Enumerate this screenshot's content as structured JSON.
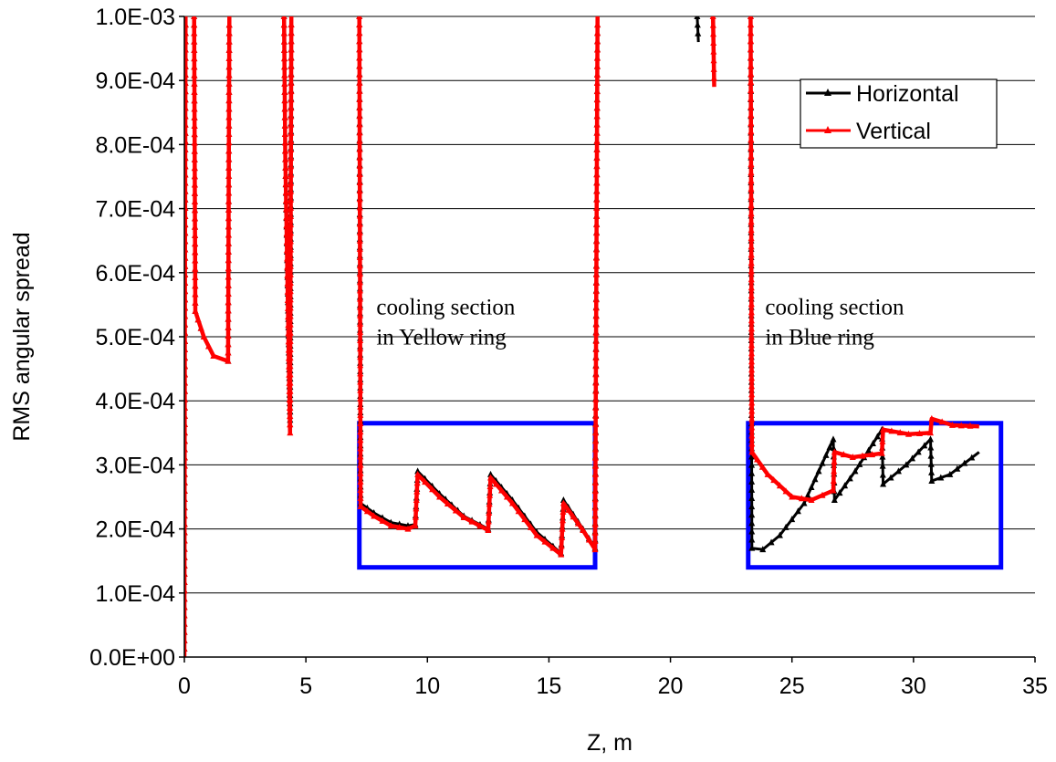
{
  "chart_data": {
    "type": "line",
    "xlabel": "Z, m",
    "ylabel": "RMS angular spread",
    "xlim": [
      0,
      35
    ],
    "ylim": [
      0,
      0.001
    ],
    "x_ticks": [
      "0",
      "5",
      "10",
      "15",
      "20",
      "25",
      "30",
      "35"
    ],
    "y_ticks": [
      "0.0E+00",
      "1.0E-04",
      "2.0E-04",
      "3.0E-04",
      "4.0E-04",
      "5.0E-04",
      "6.0E-04",
      "7.0E-04",
      "8.0E-04",
      "9.0E-04",
      "1.0E-03"
    ],
    "grid": "horizontal",
    "legend": "top-right",
    "series": [
      {
        "name": "Horizontal",
        "color": "#000000",
        "segments": [
          [
            [
              0,
              0
            ],
            [
              0.02,
              0.00048
            ],
            [
              0.05,
              0.001
            ]
          ],
          [
            [
              0.4,
              0.001
            ],
            [
              0.45,
              0.00054
            ],
            [
              0.8,
              0.0005
            ],
            [
              1.2,
              0.00047
            ],
            [
              1.8,
              0.000462
            ],
            [
              1.85,
              0.001
            ]
          ],
          [
            [
              4.1,
              0.001
            ],
            [
              4.15,
              0.00079
            ],
            [
              4.35,
              0.00037
            ],
            [
              4.4,
              0.001
            ]
          ],
          [
            [
              7.2,
              0.001
            ],
            [
              7.25,
              0.00024
            ],
            [
              7.8,
              0.000225
            ],
            [
              8.5,
              0.00021
            ],
            [
              9.2,
              0.000205
            ],
            [
              9.5,
              0.000207
            ],
            [
              9.6,
              0.00029
            ],
            [
              10.5,
              0.000255
            ],
            [
              11.5,
              0.00022
            ],
            [
              12.5,
              0.0002
            ],
            [
              12.6,
              0.000285
            ],
            [
              13.5,
              0.000245
            ],
            [
              14.5,
              0.000195
            ],
            [
              15.5,
              0.000162
            ],
            [
              15.6,
              0.000245
            ],
            [
              16.4,
              0.0002
            ],
            [
              16.9,
              0.00017
            ],
            [
              17.0,
              0.001
            ]
          ],
          [
            [
              21.1,
              0.001
            ],
            [
              21.15,
              0.00096
            ]
          ],
          [
            [
              23.3,
              0.001
            ],
            [
              23.35,
              0.00017
            ],
            [
              23.8,
              0.000168
            ],
            [
              24.5,
              0.00019
            ],
            [
              25.5,
              0.00024
            ],
            [
              26.7,
              0.00034
            ],
            [
              26.75,
              0.000245
            ],
            [
              27.6,
              0.00029
            ],
            [
              28.7,
              0.000355
            ],
            [
              28.75,
              0.00027
            ],
            [
              29.7,
              0.0003
            ],
            [
              30.7,
              0.00034
            ],
            [
              30.75,
              0.000275
            ],
            [
              31.5,
              0.000285
            ],
            [
              32.7,
              0.00032
            ]
          ]
        ]
      },
      {
        "name": "Vertical",
        "color": "#ff0000",
        "segments": [
          [
            [
              0,
              0
            ],
            [
              0.02,
              0.00048
            ],
            [
              0.05,
              0.001
            ]
          ],
          [
            [
              0.4,
              0.001
            ],
            [
              0.45,
              0.00054
            ],
            [
              0.8,
              0.0005
            ],
            [
              1.2,
              0.00047
            ],
            [
              1.8,
              0.000462
            ],
            [
              1.85,
              0.001
            ]
          ],
          [
            [
              4.1,
              0.001
            ],
            [
              4.15,
              0.00079
            ],
            [
              4.35,
              0.00035
            ],
            [
              4.4,
              0.001
            ]
          ],
          [
            [
              7.2,
              0.001
            ],
            [
              7.25,
              0.000235
            ],
            [
              7.8,
              0.00022
            ],
            [
              8.5,
              0.000205
            ],
            [
              9.2,
              0.0002
            ],
            [
              9.5,
              0.000205
            ],
            [
              9.6,
              0.000285
            ],
            [
              10.5,
              0.00025
            ],
            [
              11.5,
              0.000218
            ],
            [
              12.5,
              0.000198
            ],
            [
              12.6,
              0.00028
            ],
            [
              13.5,
              0.00024
            ],
            [
              14.5,
              0.00019
            ],
            [
              15.5,
              0.00016
            ],
            [
              15.6,
              0.00024
            ],
            [
              16.4,
              0.000198
            ],
            [
              16.9,
              0.000168
            ],
            [
              17.0,
              0.001
            ]
          ],
          [
            [
              21.75,
              0.001
            ],
            [
              21.8,
              0.00089
            ]
          ],
          [
            [
              23.3,
              0.001
            ],
            [
              23.35,
              0.00032
            ],
            [
              24.0,
              0.000285
            ],
            [
              25.0,
              0.00025
            ],
            [
              25.8,
              0.000245
            ],
            [
              26.7,
              0.00026
            ],
            [
              26.75,
              0.00032
            ],
            [
              27.5,
              0.000312
            ],
            [
              28.7,
              0.000318
            ],
            [
              28.75,
              0.000355
            ],
            [
              29.8,
              0.000348
            ],
            [
              30.7,
              0.00035
            ],
            [
              30.75,
              0.000372
            ],
            [
              31.6,
              0.000362
            ],
            [
              32.7,
              0.00036
            ]
          ]
        ]
      }
    ],
    "annotations": [
      {
        "lines": [
          "cooling section",
          "in Yellow ring"
        ],
        "x": 7.9,
        "y": 0.000535
      },
      {
        "lines": [
          "cooling section",
          "in Blue ring"
        ],
        "x": 23.9,
        "y": 0.000535
      }
    ],
    "boxes": [
      {
        "x0": 7.2,
        "x1": 16.9,
        "y0": 0.00014,
        "y1": 0.000365,
        "color": "#0000ff"
      },
      {
        "x0": 23.2,
        "x1": 33.6,
        "y0": 0.00014,
        "y1": 0.000365,
        "color": "#0000ff"
      }
    ]
  }
}
